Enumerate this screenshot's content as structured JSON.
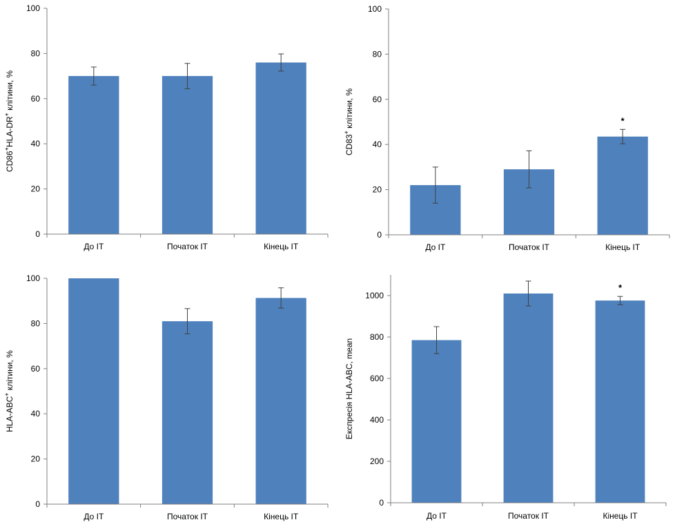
{
  "chart_data": [
    {
      "type": "bar",
      "categories": [
        "До IT",
        "Початок IT",
        "Кінець IT"
      ],
      "values": [
        70,
        70,
        76
      ],
      "errors": [
        4,
        5.6,
        3.8
      ],
      "significance": [
        "",
        "",
        ""
      ],
      "ylabel_parts": [
        [
          "CD86",
          "",
          false
        ],
        [
          "+",
          "sup",
          false
        ],
        [
          "HLA-DR",
          "",
          false
        ],
        [
          "+",
          "sup",
          false
        ],
        [
          " клітини, %",
          "",
          false
        ]
      ],
      "ylim": [
        0,
        100
      ],
      "yticks": [
        0,
        20,
        40,
        60,
        80,
        100
      ],
      "color": "#4f81bd"
    },
    {
      "type": "bar",
      "categories": [
        "До IT",
        "Початок IT",
        "Кінець IT"
      ],
      "values": [
        22,
        29,
        43.5
      ],
      "errors": [
        8,
        8.2,
        3.2
      ],
      "significance": [
        "",
        "",
        "*"
      ],
      "ylabel_parts": [
        [
          "CD83",
          "",
          false
        ],
        [
          "+",
          "sup",
          false
        ],
        [
          " клітини, %",
          "",
          false
        ]
      ],
      "ylim": [
        0,
        100
      ],
      "yticks": [
        0,
        20,
        40,
        60,
        80,
        100
      ],
      "color": "#4f81bd"
    },
    {
      "type": "bar",
      "categories": [
        "До IT",
        "Початок IT",
        "Кінець IT"
      ],
      "values": [
        100,
        81,
        91.3
      ],
      "errors": [
        0,
        5.6,
        4.5
      ],
      "significance": [
        "",
        "",
        ""
      ],
      "ylabel_parts": [
        [
          "HLA-ABC",
          "",
          false
        ],
        [
          "+",
          "sup",
          false
        ],
        [
          " клітини, %",
          "",
          false
        ]
      ],
      "ylim": [
        0,
        100
      ],
      "yticks": [
        0,
        20,
        40,
        60,
        80,
        100
      ],
      "color": "#4f81bd"
    },
    {
      "type": "bar",
      "categories": [
        "До IT",
        "Початок IT",
        "Кінець IT"
      ],
      "values": [
        785,
        1010,
        976
      ],
      "errors": [
        65,
        60,
        20
      ],
      "significance": [
        "",
        "",
        "*"
      ],
      "ylabel_parts": [
        [
          "Експресія HLA-ABC, mean",
          "",
          false
        ]
      ],
      "ylim": [
        0,
        1100
      ],
      "yticks": [
        0,
        200,
        400,
        600,
        800,
        1000
      ],
      "color": "#4f81bd"
    }
  ]
}
